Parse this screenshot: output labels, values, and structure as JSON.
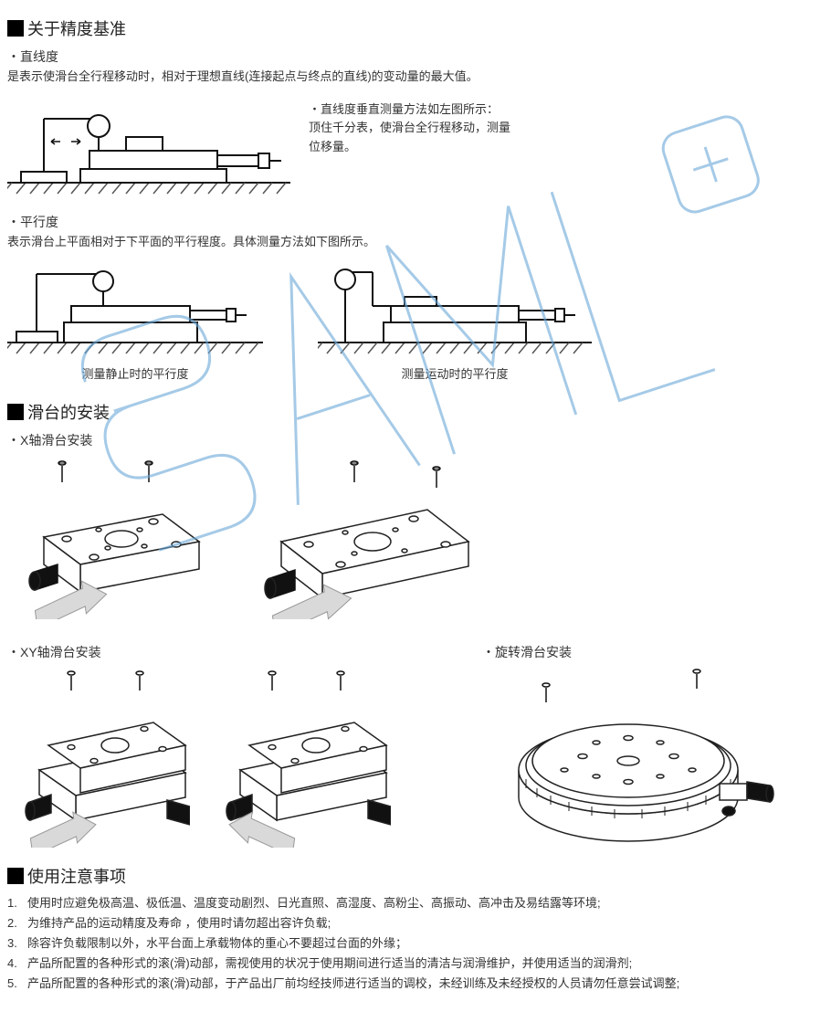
{
  "sections": {
    "precision": {
      "title": "关于精度基准",
      "sub1_label": "・直线度",
      "sub1_text": "是表示使滑台全行程移动时，相对于理想直线(连接起点与终点的直线)的变动量的最大值。",
      "diag1_side_line1": "・直线度垂直测量方法如左图所示：",
      "diag1_side_line2": "顶住千分表，使滑台全行程移动，测量",
      "diag1_side_line3": "位移量。",
      "sub2_label": "・平行度",
      "sub2_text": "表示滑台上平面相对于下平面的平行程度。具体测量方法如下图所示。",
      "diag2_caption": "测量静止时的平行度",
      "diag3_caption": "测量运动时的平行度"
    },
    "install": {
      "title": "滑台的安装",
      "x_label": "・X轴滑台安装",
      "xy_label": "・XY轴滑台安装",
      "rot_label": "・旋转滑台安装"
    },
    "notes": {
      "title": "使用注意事项",
      "items": [
        "使用时应避免极高温、极低温、温度变动剧烈、日光直照、高湿度、高粉尘、高振动、高冲击及易结露等环境;",
        "为维持产品的运动精度及寿命 ，使用时请勿超出容许负载;",
        "除容许负载限制以外，水平台面上承载物体的重心不要超过台面的外缘；",
        "产品所配置的各种形式的滚(滑)动部，需视使用的状况于使用期间进行适当的清洁与润滑维护，并使用适当的润滑剂;",
        "产品所配置的各种形式的滚(滑)动部，于产品出厂前均经技师进行适当的调校，未经训练及未经授权的人员请勿任意尝试调整;"
      ]
    }
  },
  "colors": {
    "text": "#333333",
    "sectionMarker": "#000000",
    "diagramStroke": "#111111",
    "hatch": "#555555",
    "watermark": "#6aa8d8",
    "arrowFill": "#d9d9d9",
    "arrowStroke": "#888888",
    "stageFill": "#ffffff",
    "stageStroke": "#222222",
    "knurlFill": "#111111"
  }
}
